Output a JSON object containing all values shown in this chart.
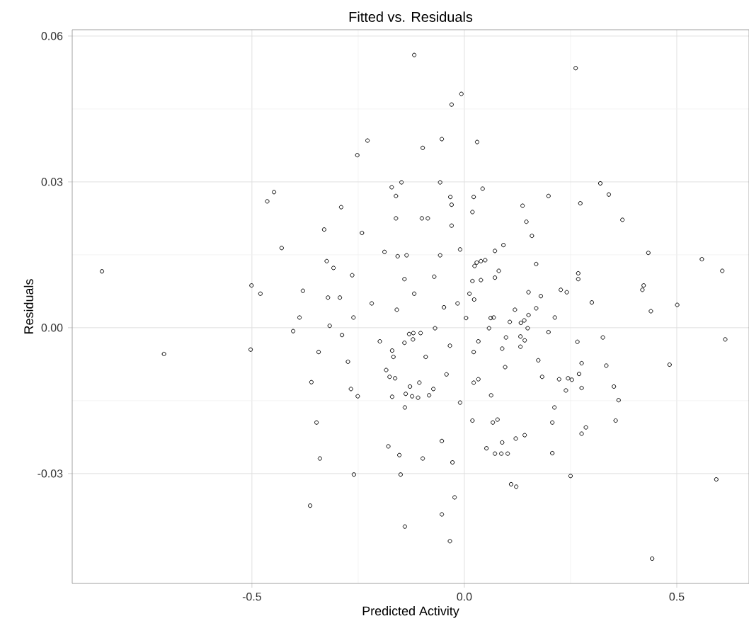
{
  "chart_data": {
    "type": "scatter",
    "title": "Fitted vs. Residuals",
    "xlabel": "Predicted Activity",
    "ylabel": "Residuals",
    "xlim": [
      -0.923,
      0.67
    ],
    "ylim": [
      -0.0526,
      0.0613
    ],
    "xticks": [
      {
        "value": -0.5,
        "label": "-0.5"
      },
      {
        "value": 0,
        "label": "0.0"
      },
      {
        "value": 0.5,
        "label": "0.5"
      }
    ],
    "yticks": [
      {
        "value": -0.03,
        "label": "-0.03"
      },
      {
        "value": 0,
        "label": "0.00"
      },
      {
        "value": 0.03,
        "label": "0.03"
      },
      {
        "value": 0.06,
        "label": "0.06"
      }
    ],
    "grid": true,
    "marker": "circle",
    "x": [
      -0.853,
      -0.464,
      -0.448,
      -0.43,
      -0.501,
      -0.48,
      -0.707,
      -0.503,
      -0.403,
      -0.118,
      -0.007,
      -0.03,
      -0.228,
      -0.053,
      -0.098,
      0.03,
      -0.252,
      -0.171,
      -0.148,
      -0.057,
      0.043,
      -0.161,
      -0.033,
      -0.03,
      0.022,
      -0.29,
      -0.161,
      -0.1,
      -0.086,
      0.019,
      -0.03,
      -0.33,
      -0.241,
      0.092,
      0.072,
      -0.01,
      -0.057,
      -0.188,
      -0.157,
      -0.136,
      -0.324,
      -0.308,
      -0.264,
      -0.141,
      -0.071,
      0.024,
      0.039,
      0.049,
      0.029,
      0.081,
      0.072,
      0.039,
      0.019,
      -0.38,
      -0.321,
      -0.293,
      -0.118,
      0.012,
      0.023,
      -0.218,
      -0.159,
      -0.048,
      -0.016,
      0.119,
      -0.388,
      -0.261,
      0.004,
      0.062,
      0.137,
      0.262,
      0.32,
      0.198,
      0.34,
      0.273,
      0.146,
      0.372,
      0.159,
      0.433,
      0.559,
      0.607,
      0.169,
      0.268,
      0.268,
      0.422,
      0.419,
      0.151,
      0.18,
      0.227,
      0.241,
      0.3,
      0.169,
      0.151,
      0.213,
      0.439,
      0.501,
      0.069,
      0.107,
      0.133,
      -0.317,
      -0.288,
      -0.199,
      -0.141,
      -0.13,
      -0.12,
      -0.103,
      -0.121,
      -0.069,
      -0.034,
      0.058,
      0.033,
      0.098,
      0.132,
      0.089,
      0.132,
      0.022,
      -0.343,
      -0.17,
      -0.167,
      -0.091,
      -0.274,
      -0.184,
      -0.176,
      -0.163,
      -0.042,
      0.096,
      -0.36,
      -0.128,
      -0.106,
      0.022,
      0.033,
      -0.267,
      -0.251,
      -0.17,
      -0.138,
      -0.123,
      -0.109,
      -0.083,
      -0.073,
      0.063,
      -0.01,
      -0.14,
      -0.348,
      0.019,
      0.067,
      0.078,
      -0.053,
      0.089,
      0.121,
      -0.179,
      -0.153,
      -0.34,
      -0.098,
      -0.028,
      0.052,
      0.072,
      0.087,
      0.102,
      -0.26,
      -0.15,
      0.11,
      0.122,
      -0.363,
      -0.023,
      -0.053,
      -0.14,
      -0.034,
      0.141,
      0.149,
      0.142,
      0.198,
      0.266,
      0.326,
      0.614,
      0.174,
      0.183,
      0.223,
      0.244,
      0.253,
      0.27,
      0.276,
      0.334,
      0.483,
      0.239,
      0.276,
      0.352,
      0.363,
      0.212,
      0.207,
      0.356,
      0.286,
      0.276,
      0.142,
      0.207,
      0.25,
      0.593,
      0.442
    ],
    "series": [
      {
        "color": "#000000",
        "values": [
          0.0116,
          0.026,
          0.0279,
          0.0164,
          0.0087,
          0.007,
          -0.0054,
          -0.0045,
          -0.0007,
          0.0561,
          0.0481,
          0.0459,
          0.0385,
          0.0388,
          0.037,
          0.0382,
          0.0355,
          0.0289,
          0.0299,
          0.0299,
          0.0286,
          0.0271,
          0.0269,
          0.0253,
          0.0269,
          0.0248,
          0.0225,
          0.0225,
          0.0225,
          0.0238,
          0.021,
          0.0202,
          0.0195,
          0.017,
          0.0158,
          0.0161,
          0.0149,
          0.0156,
          0.0147,
          0.0149,
          0.0137,
          0.0123,
          0.0108,
          0.01,
          0.0105,
          0.0127,
          0.0137,
          0.0139,
          0.0134,
          0.0117,
          0.0103,
          0.0098,
          0.0096,
          0.0076,
          0.0062,
          0.0062,
          0.007,
          0.007,
          0.0058,
          0.005,
          0.0037,
          0.0042,
          0.005,
          0.0037,
          0.0021,
          0.0021,
          0.002,
          0.002,
          0.0251,
          0.0534,
          0.0297,
          0.0271,
          0.0274,
          0.0256,
          0.0218,
          0.0222,
          0.0189,
          0.0154,
          0.0141,
          0.0117,
          0.0131,
          0.0112,
          0.01,
          0.0087,
          0.0078,
          0.0073,
          0.0065,
          0.0078,
          0.0073,
          0.0052,
          0.004,
          0.0026,
          0.0021,
          0.0034,
          0.0047,
          0.0021,
          0.0012,
          0.001,
          0.0004,
          -0.0015,
          -0.0028,
          -0.0031,
          -0.0013,
          -0.0011,
          -0.0011,
          -0.0024,
          -0.0001,
          -0.0037,
          -0.0001,
          -0.0028,
          -0.002,
          -0.0018,
          -0.0043,
          -0.0039,
          -0.005,
          -0.005,
          -0.0047,
          -0.006,
          -0.006,
          -0.007,
          -0.0087,
          -0.0101,
          -0.0104,
          -0.0096,
          -0.0081,
          -0.0112,
          -0.0121,
          -0.0113,
          -0.0113,
          -0.0106,
          -0.0126,
          -0.0141,
          -0.0142,
          -0.0136,
          -0.0141,
          -0.0144,
          -0.0139,
          -0.0126,
          -0.0139,
          -0.0154,
          -0.0164,
          -0.0195,
          -0.0191,
          -0.0195,
          -0.0189,
          -0.0233,
          -0.0236,
          -0.0228,
          -0.0244,
          -0.0262,
          -0.0269,
          -0.0269,
          -0.0277,
          -0.0248,
          -0.0259,
          -0.0259,
          -0.0259,
          -0.0302,
          -0.0302,
          -0.0322,
          -0.0327,
          -0.0366,
          -0.0349,
          -0.0384,
          -0.0409,
          -0.0439,
          0.0015,
          -0.0001,
          -0.0026,
          -0.0009,
          -0.0029,
          -0.002,
          -0.0024,
          -0.0067,
          -0.0101,
          -0.0106,
          -0.0104,
          -0.0107,
          -0.0095,
          -0.0073,
          -0.0078,
          -0.0076,
          -0.0129,
          -0.0124,
          -0.0121,
          -0.0149,
          -0.0164,
          -0.0195,
          -0.0191,
          -0.0205,
          -0.0218,
          -0.0221,
          -0.0258,
          -0.0305,
          -0.0312,
          -0.0475
        ]
      }
    ]
  }
}
